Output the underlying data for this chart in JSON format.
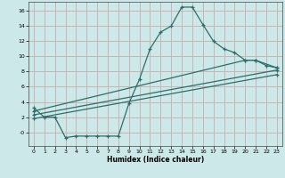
{
  "xlabel": "Humidex (Indice chaleur)",
  "bg_color": "#cce8e8",
  "grid_color": "#c8b4b4",
  "line_color": "#2d6e6a",
  "xlim": [
    -0.5,
    23.5
  ],
  "ylim": [
    -1.8,
    17.2
  ],
  "xticks": [
    0,
    1,
    2,
    3,
    4,
    5,
    6,
    7,
    8,
    9,
    10,
    11,
    12,
    13,
    14,
    15,
    16,
    17,
    18,
    19,
    20,
    21,
    22,
    23
  ],
  "ytick_vals": [
    0,
    2,
    4,
    6,
    8,
    10,
    12,
    14,
    16
  ],
  "ytick_labels": [
    "-0",
    "2",
    "4",
    "6",
    "8",
    "10",
    "12",
    "14",
    "16"
  ],
  "line1_x": [
    0,
    1,
    2,
    3,
    4,
    5,
    6,
    7,
    8,
    9,
    10,
    11,
    12,
    13,
    14,
    15,
    16,
    17,
    18,
    19,
    20,
    21,
    22,
    23
  ],
  "line1_y": [
    3.2,
    2.0,
    2.0,
    -0.7,
    -0.5,
    -0.5,
    -0.5,
    -0.5,
    -0.5,
    3.8,
    7.0,
    11.0,
    13.2,
    14.0,
    16.5,
    16.5,
    14.2,
    12.0,
    11.0,
    10.5,
    9.5,
    9.5,
    8.8,
    8.5
  ],
  "line2_x": [
    0,
    20,
    21,
    23
  ],
  "line2_y": [
    2.8,
    9.5,
    9.5,
    8.5
  ],
  "line3_x": [
    0,
    23
  ],
  "line3_y": [
    2.3,
    8.2
  ],
  "line4_x": [
    0,
    23
  ],
  "line4_y": [
    1.8,
    7.6
  ],
  "marker": "+"
}
